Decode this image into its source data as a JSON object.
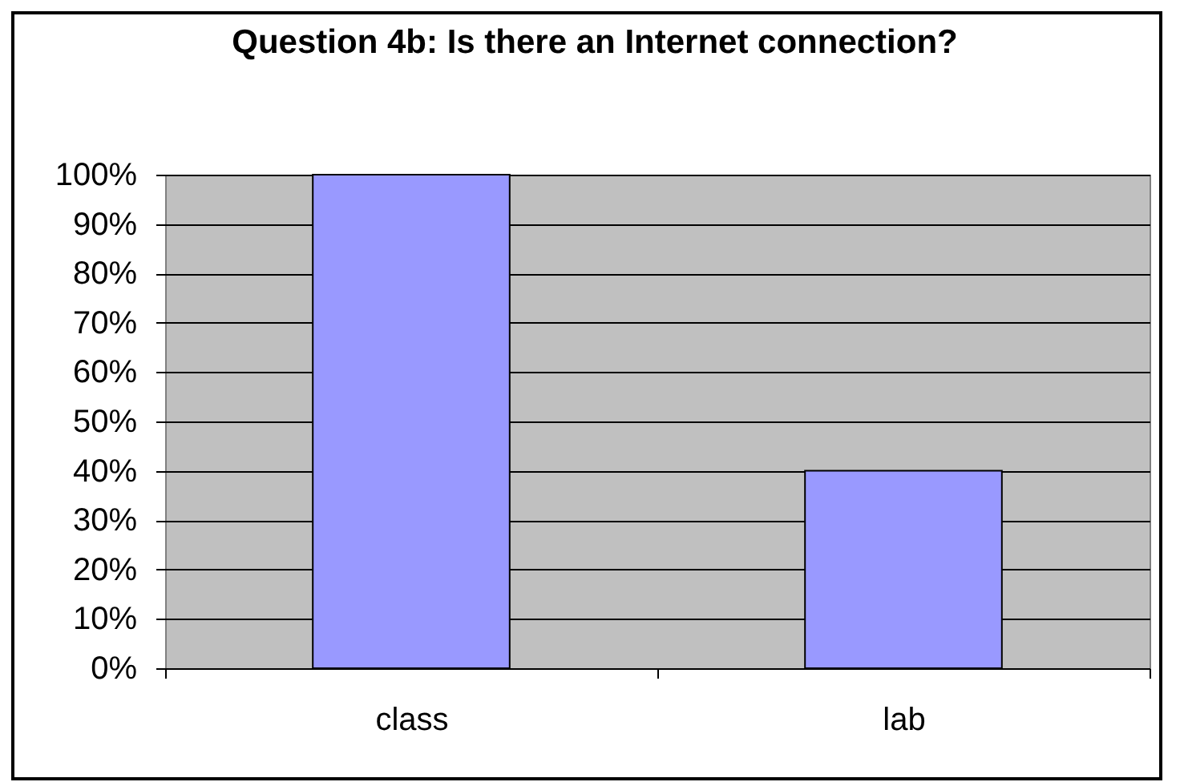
{
  "chart_data": {
    "type": "bar",
    "title": "Question 4b: Is there an Internet connection?",
    "categories": [
      "class",
      "lab"
    ],
    "values": [
      100,
      40
    ],
    "color": "#9999ff",
    "ylim": [
      0,
      100
    ],
    "yticks": [
      {
        "value": 0,
        "label": "0%"
      },
      {
        "value": 10,
        "label": "10%"
      },
      {
        "value": 20,
        "label": "20%"
      },
      {
        "value": 30,
        "label": "30%"
      },
      {
        "value": 40,
        "label": "40%"
      },
      {
        "value": 50,
        "label": "50%"
      },
      {
        "value": 60,
        "label": "60%"
      },
      {
        "value": 70,
        "label": "70%"
      },
      {
        "value": 80,
        "label": "80%"
      },
      {
        "value": 90,
        "label": "90%"
      },
      {
        "value": 100,
        "label": "100%"
      }
    ],
    "grid": "y"
  }
}
